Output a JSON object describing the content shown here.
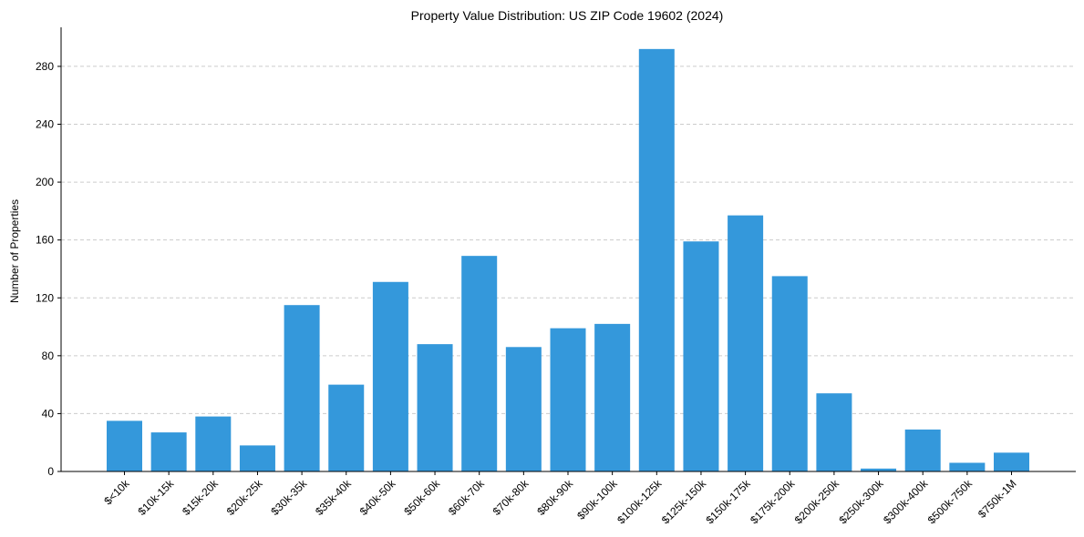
{
  "chart_data": {
    "type": "bar",
    "title": "Property Value Distribution: US ZIP Code 19602 (2024)",
    "xlabel": "",
    "ylabel": "Number of Properties",
    "ylim": [
      0,
      307
    ],
    "yticks": [
      0,
      40,
      80,
      120,
      160,
      200,
      240,
      280
    ],
    "grid": "y-dashed",
    "bar_color": "#3498db",
    "categories": [
      "$<10k",
      "$10k-15k",
      "$15k-20k",
      "$20k-25k",
      "$30k-35k",
      "$35k-40k",
      "$40k-50k",
      "$50k-60k",
      "$60k-70k",
      "$70k-80k",
      "$80k-90k",
      "$90k-100k",
      "$100k-125k",
      "$125k-150k",
      "$150k-175k",
      "$175k-200k",
      "$200k-250k",
      "$250k-300k",
      "$300k-400k",
      "$500k-750k",
      "$750k-1M"
    ],
    "values": [
      35,
      27,
      38,
      18,
      115,
      60,
      131,
      88,
      149,
      86,
      99,
      102,
      292,
      159,
      177,
      135,
      54,
      2,
      29,
      6,
      13
    ]
  }
}
